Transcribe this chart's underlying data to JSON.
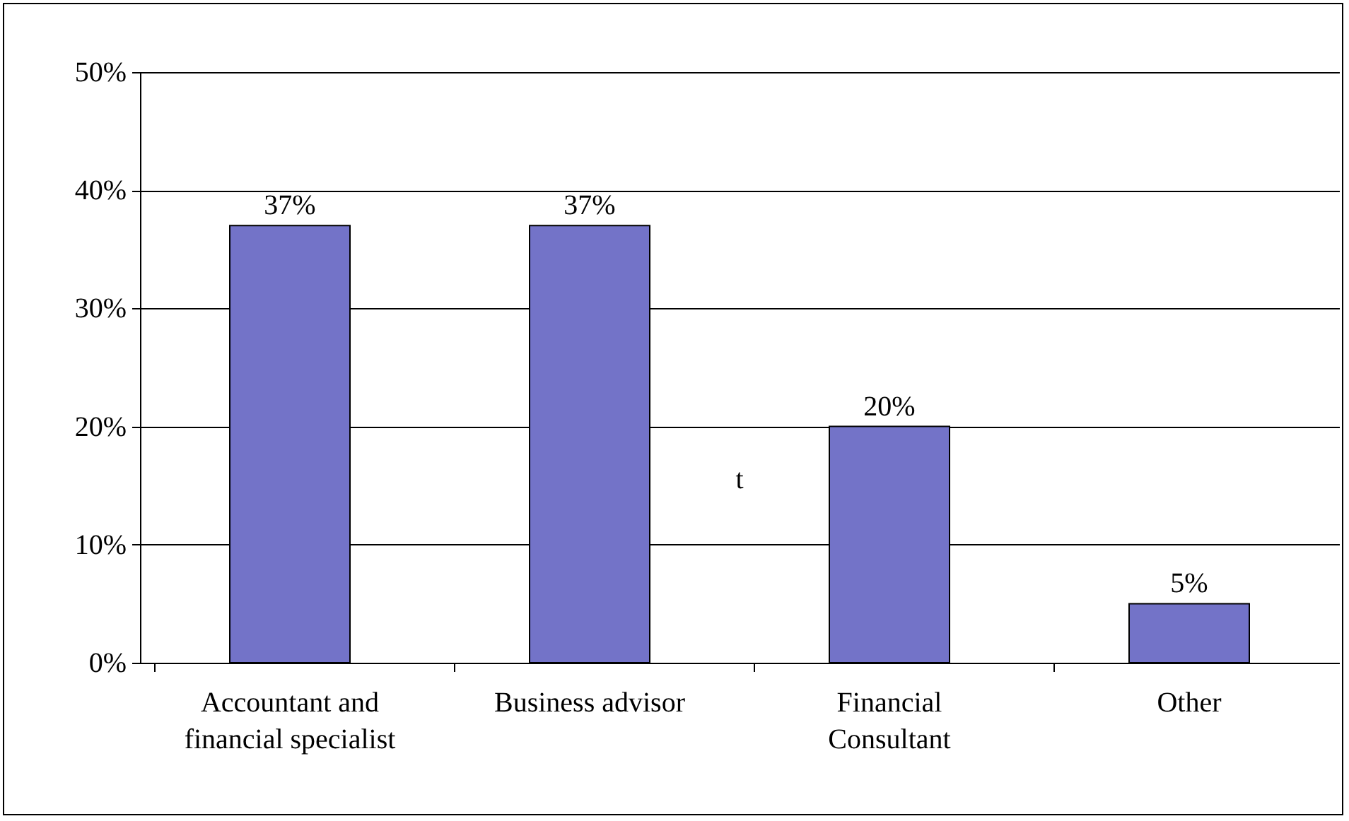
{
  "chart_data": {
    "type": "bar",
    "categories": [
      "Accountant and financial specialist",
      "Business advisor",
      "Financial Consultant",
      "Other"
    ],
    "values": [
      37,
      37,
      20,
      5
    ],
    "color": "#7373c8",
    "value_labels": [
      "37%",
      "37%",
      "20%",
      "5%"
    ],
    "ylim": [
      0,
      50
    ],
    "yticks": [
      {
        "value": 0,
        "label": "0%"
      },
      {
        "value": 10,
        "label": "10%"
      },
      {
        "value": 20,
        "label": "20%"
      },
      {
        "value": 30,
        "label": "30%"
      },
      {
        "value": 40,
        "label": "40%"
      },
      {
        "value": 50,
        "label": "50%"
      }
    ],
    "grid": "y",
    "annotations": [
      "t"
    ]
  }
}
